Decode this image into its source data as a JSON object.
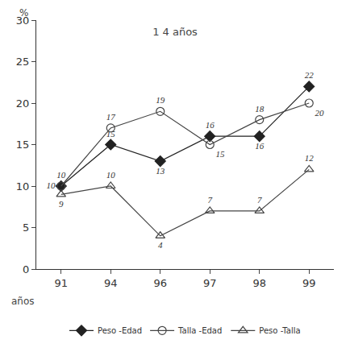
{
  "chart_data": {
    "type": "line",
    "title": "1 4 años",
    "x_label": "años",
    "y_label": "%",
    "categories": [
      "91",
      "94",
      "96",
      "97",
      "98",
      "99"
    ],
    "series": [
      {
        "name": "Peso -Edad",
        "color": "#222222",
        "marker": "diamond",
        "values": [
          10,
          15,
          13,
          16,
          16,
          22
        ]
      },
      {
        "name": "Talla -Edad",
        "color": "#444444",
        "marker": "circle-open",
        "values": [
          10,
          17,
          19,
          15,
          18,
          20
        ]
      },
      {
        "name": "Peso -Talla",
        "color": "#444444",
        "marker": "triangle-up-open",
        "values": [
          9,
          10,
          4,
          7,
          7,
          12
        ]
      }
    ],
    "ylim": [
      0,
      30
    ],
    "yticks": [
      0,
      5,
      10,
      15,
      20,
      25,
      30
    ],
    "grid": false,
    "legend": "bottom",
    "data_labels": true
  }
}
